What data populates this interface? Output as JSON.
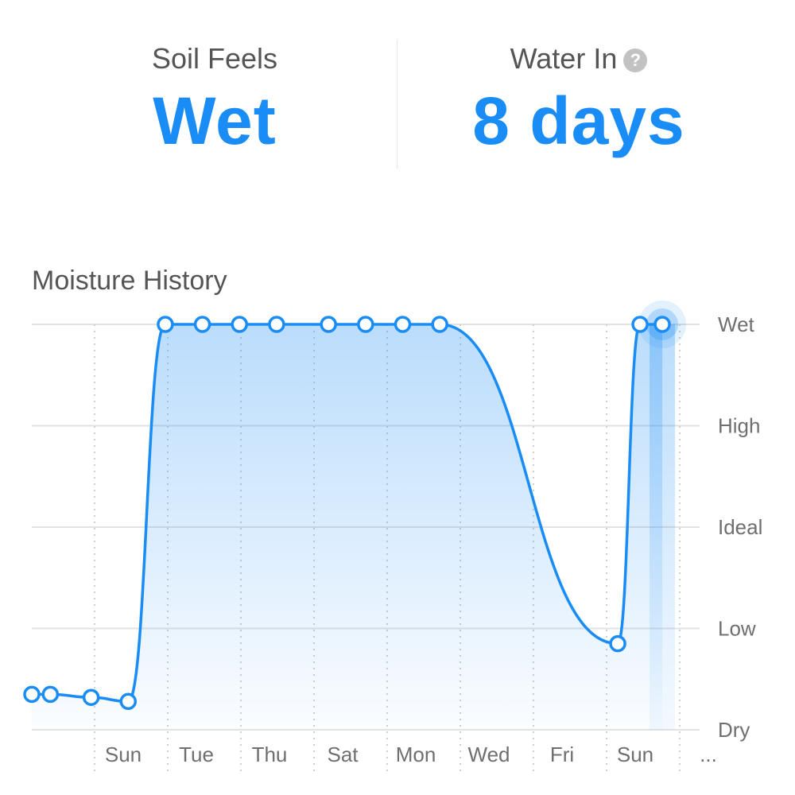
{
  "header": {
    "soil": {
      "label": "Soil Feels",
      "value": "Wet"
    },
    "water": {
      "label": "Water In",
      "value": "8 days",
      "help_icon": "question-circle-icon",
      "help_glyph": "?"
    }
  },
  "colors": {
    "accent": "#1a8cf5",
    "grid": "#e2e2e2",
    "text_muted": "#6f6f6f",
    "help_icon": "#c2c2c2"
  },
  "chart_data": {
    "type": "area",
    "title": "Moisture History",
    "y_categories": [
      "Dry",
      "Low",
      "Ideal",
      "High",
      "Wet"
    ],
    "x_ticks": [
      "Sun",
      "Tue",
      "Thu",
      "Sat",
      "Mon",
      "Wed",
      "Fri",
      "Sun",
      "..."
    ],
    "series": [
      {
        "points": [
          {
            "x": 0,
            "y": 0.35
          },
          {
            "x": 0.25,
            "y": 0.35
          },
          {
            "x": 0.8,
            "y": 0.32
          },
          {
            "x": 1.3,
            "y": 0.28
          },
          {
            "x": 1.8,
            "y": 4.0
          },
          {
            "x": 2.3,
            "y": 4.0
          },
          {
            "x": 2.8,
            "y": 4.0
          },
          {
            "x": 3.3,
            "y": 4.0
          },
          {
            "x": 4.0,
            "y": 4.0
          },
          {
            "x": 4.5,
            "y": 4.0
          },
          {
            "x": 5.0,
            "y": 4.0
          },
          {
            "x": 5.5,
            "y": 4.0
          },
          {
            "x": 7.9,
            "y": 0.85
          },
          {
            "x": 8.2,
            "y": 4.0
          },
          {
            "x": 8.5,
            "y": 4.0
          }
        ],
        "highlight_last": true
      }
    ],
    "legend": "none",
    "grid": true
  }
}
